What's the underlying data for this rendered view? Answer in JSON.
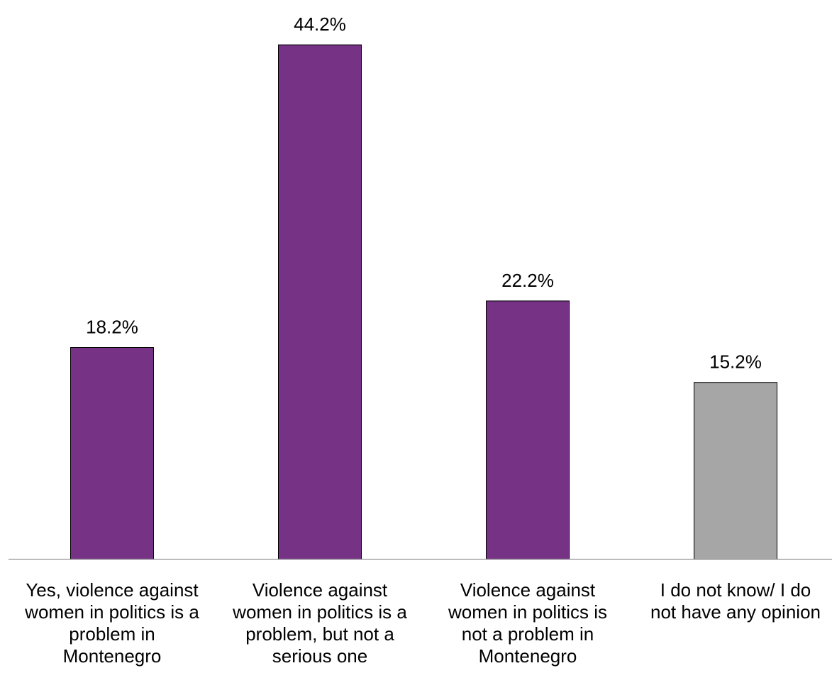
{
  "chart_data": {
    "type": "bar",
    "categories": [
      [
        "Yes, violence against",
        "women in politics is a",
        "problem in",
        "Montenegro"
      ],
      [
        "Violence against",
        "women in politics is a",
        "problem, but not a",
        "serious one"
      ],
      [
        "Violence against",
        "women in politics is",
        "not a problem in",
        "Montenegro"
      ],
      [
        "I do not know/ I do",
        "not have any opinion"
      ]
    ],
    "values": [
      18.2,
      44.2,
      22.2,
      15.2
    ],
    "value_labels": [
      "18.2%",
      "44.2%",
      "22.2%",
      "15.2%"
    ],
    "colors": [
      "#763385",
      "#763385",
      "#763385",
      "#a6a6a6"
    ],
    "title": "",
    "xlabel": "",
    "ylabel": "",
    "ylim": [
      0,
      50
    ],
    "grid": false,
    "legend": "none"
  }
}
